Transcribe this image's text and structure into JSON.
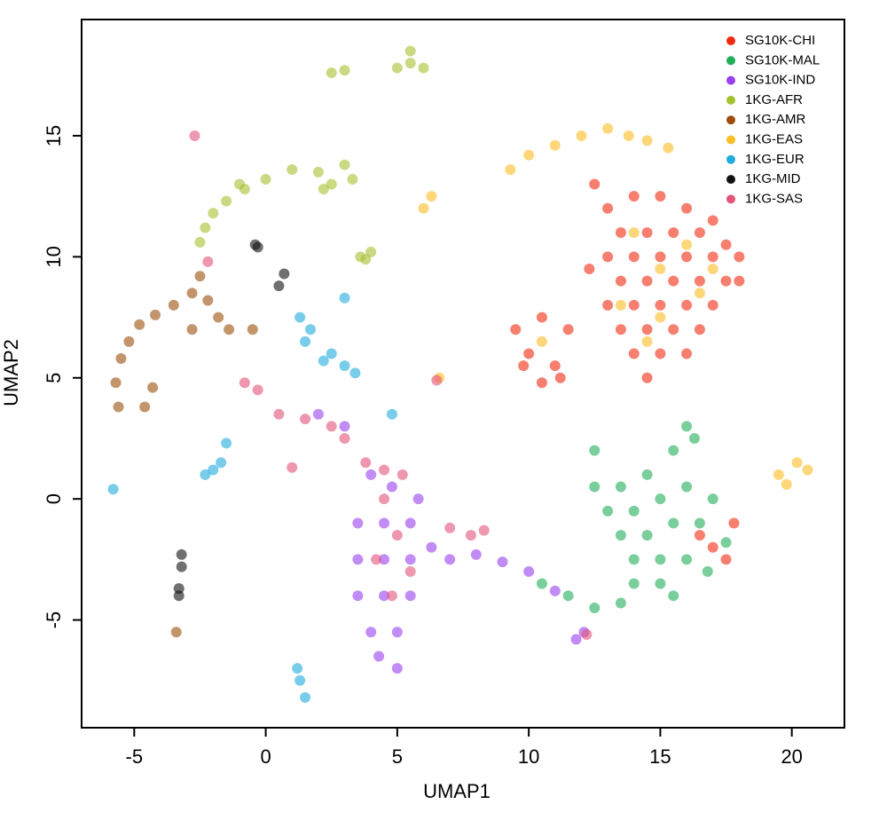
{
  "chart_data": {
    "type": "scatter",
    "xlabel": "UMAP1",
    "ylabel": "UMAP2",
    "xlim": [
      -7,
      22
    ],
    "ylim": [
      -9.45,
      19.8
    ],
    "xticks": [
      -5,
      0,
      5,
      10,
      15,
      20
    ],
    "yticks": [
      -5,
      0,
      5,
      10,
      15
    ],
    "legend": "topright",
    "series": [
      {
        "name": "SG10K-CHI",
        "color": "#f22a10",
        "x": [
          13,
          14,
          15,
          16,
          17,
          18,
          13.5,
          14.5,
          15.5,
          16.5,
          17.5,
          13,
          14,
          15,
          16,
          17,
          18,
          13.5,
          14.5,
          15.5,
          16.5,
          17.5,
          13,
          14,
          15,
          16,
          17,
          13.5,
          14.5,
          15.5,
          16.5,
          14,
          15,
          16,
          14.5,
          9.5,
          10.5,
          11.5,
          10,
          11,
          9.8,
          11.2,
          10.5,
          16.5,
          17,
          17.5,
          17.8,
          12.5,
          12.3
        ],
        "y": [
          12,
          12.5,
          12.5,
          12,
          11.5,
          10,
          11,
          11,
          11,
          11,
          10.5,
          10,
          10,
          10,
          10,
          10,
          9,
          9,
          9,
          9,
          9,
          9,
          8,
          8,
          8,
          8,
          8,
          7,
          7,
          7,
          7,
          6,
          6,
          6,
          5,
          7,
          7.5,
          7,
          6,
          5.5,
          5.5,
          5,
          4.8,
          -1.5,
          -2,
          -2.5,
          -1,
          13,
          9.5
        ]
      },
      {
        "name": "SG10K-MAL",
        "color": "#1fae5a",
        "x": [
          12.5,
          13.5,
          14.5,
          15.5,
          16.3,
          16,
          13,
          14,
          15,
          16,
          17,
          13.5,
          14.5,
          15.5,
          16.5,
          14,
          15,
          16,
          14,
          15,
          13.5,
          12.5,
          11.5,
          10.5,
          12.5,
          17.5,
          16.8,
          15.5
        ],
        "y": [
          0.5,
          0.5,
          1,
          2,
          2.5,
          3,
          -0.5,
          -0.5,
          0,
          0.5,
          0,
          -1.5,
          -1.5,
          -1,
          -1,
          -2.5,
          -2.5,
          -2.5,
          -3.5,
          -3.5,
          -4.3,
          -4.5,
          -4,
          -3.5,
          2,
          -1.8,
          -3,
          -4
        ]
      },
      {
        "name": "SG10K-IND",
        "color": "#9a3ff0",
        "x": [
          3.5,
          4.5,
          5.5,
          3.5,
          4.5,
          5.5,
          6.3,
          3.5,
          4.5,
          5.5,
          4,
          5,
          4.3,
          5,
          4.8,
          5.8,
          4,
          3,
          2,
          7,
          8,
          9,
          10,
          11,
          12.1,
          11.8
        ],
        "y": [
          -1,
          -1,
          -1,
          -2.5,
          -2.5,
          -2.5,
          -2,
          -4,
          -4,
          -4,
          -5.5,
          -5.5,
          -6.5,
          -7,
          0.5,
          0,
          1,
          3,
          3.5,
          -2.5,
          -2.3,
          -2.6,
          -3,
          -3.8,
          -5.5,
          -5.8
        ]
      },
      {
        "name": "1KG-AFR",
        "color": "#a6c12f",
        "x": [
          2.5,
          3,
          5,
          5.5,
          6,
          5.5,
          2,
          2.5,
          3,
          3.3,
          2.2,
          1,
          0,
          -0.8,
          -1.5,
          -2,
          -2.3,
          -2.5,
          -1,
          3.6,
          4,
          3.8
        ],
        "y": [
          17.6,
          17.7,
          17.8,
          18,
          17.8,
          18.5,
          13.5,
          13,
          13.8,
          13.2,
          12.8,
          13.6,
          13.2,
          12.8,
          12.3,
          11.8,
          11.2,
          10.6,
          13,
          10,
          10.2,
          9.9
        ]
      },
      {
        "name": "1KG-AMR",
        "color": "#9b4e0b",
        "x": [
          -5.6,
          -5.7,
          -5.5,
          -5.2,
          -4.8,
          -4.2,
          -3.5,
          -2.8,
          -2.5,
          -2.2,
          -1.8,
          -1.4,
          -0.5,
          -2.8,
          -4.3,
          -4.6,
          -3.4
        ],
        "y": [
          3.8,
          4.8,
          5.8,
          6.5,
          7.2,
          7.6,
          8,
          8.5,
          9.2,
          8.2,
          7.5,
          7,
          7,
          7,
          4.6,
          3.8,
          -5.5
        ]
      },
      {
        "name": "1KG-EAS",
        "color": "#fbbd22",
        "x": [
          13,
          13.8,
          14.5,
          15.3,
          9.3,
          10,
          11,
          12,
          6,
          6.3,
          14,
          15,
          16,
          13.5,
          15,
          16.5,
          14.5,
          17,
          10.5,
          19.5,
          20.2,
          20.6,
          19.8,
          6.6
        ],
        "y": [
          15.3,
          15,
          14.8,
          14.5,
          13.6,
          14.2,
          14.6,
          15,
          12,
          12.5,
          11,
          9.5,
          10.5,
          8,
          7.5,
          8.5,
          6.5,
          9.5,
          6.5,
          1,
          1.5,
          1.2,
          0.6,
          5
        ]
      },
      {
        "name": "1KG-EUR",
        "color": "#20abdd",
        "x": [
          1.3,
          1.7,
          1.5,
          2.5,
          3,
          2.2,
          -2.3,
          -1.7,
          -2,
          -1.5,
          -5.8,
          1.3,
          1.5,
          1.2,
          4.8,
          3,
          3.4
        ],
        "y": [
          7.5,
          7,
          6.5,
          6,
          5.5,
          5.7,
          1,
          1.5,
          1.2,
          2.3,
          0.4,
          -7.5,
          -8.2,
          -7,
          3.5,
          8.3,
          5.2
        ]
      },
      {
        "name": "1KG-MID",
        "color": "#111111",
        "x": [
          -0.4,
          -0.3,
          0.7,
          0.5,
          -3.2,
          -3.2,
          -3.3,
          -3.3
        ],
        "y": [
          10.5,
          10.4,
          9.3,
          8.8,
          -2.3,
          -2.8,
          -3.7,
          -4
        ]
      },
      {
        "name": "1KG-SAS",
        "color": "#e3547a",
        "x": [
          -2.7,
          -2.2,
          -0.8,
          -0.3,
          0.5,
          1.5,
          2.5,
          3,
          3.8,
          4.5,
          5.2,
          1,
          4.5,
          5,
          4.2,
          5.5,
          4.8,
          7,
          7.8,
          8.3,
          6.5,
          12.2
        ],
        "y": [
          15,
          9.8,
          4.8,
          4.5,
          3.5,
          3.3,
          3,
          2.5,
          1.5,
          1.2,
          1,
          1.3,
          0,
          -1.5,
          -2.5,
          -3,
          -4,
          -1.2,
          -1.5,
          -1.3,
          4.9,
          -5.6
        ]
      }
    ]
  }
}
